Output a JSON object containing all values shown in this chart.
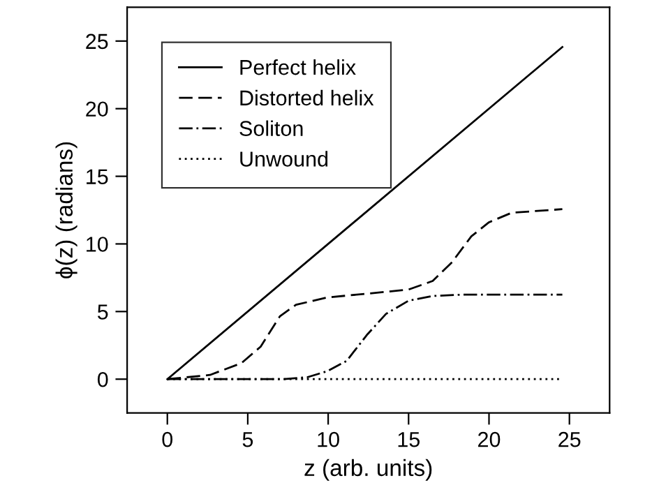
{
  "chart_data": {
    "type": "line",
    "xlabel": "z (arb. units)",
    "ylabel": "ϕ(z) (radians)",
    "xlim": [
      -2.5,
      27.5
    ],
    "ylim": [
      -2.5,
      27.5
    ],
    "xticks": [
      0,
      5,
      10,
      15,
      20,
      25
    ],
    "yticks": [
      0,
      5,
      10,
      15,
      20,
      25
    ],
    "grid": false,
    "legend": "top left",
    "marker": "none",
    "series": [
      {
        "name": "Perfect helix",
        "color": "#000000",
        "line_style": "solid",
        "x": [
          0,
          24.56
        ],
        "values": [
          0,
          24.56
        ]
      },
      {
        "name": "Distorted helix",
        "color": "#000000",
        "line_style": "dashed",
        "x": [
          0,
          2.65,
          4.6,
          5.8,
          7.0,
          8.0,
          9.94,
          12.4,
          15.0,
          16.5,
          17.7,
          18.9,
          20.0,
          21.4,
          24.56
        ],
        "values": [
          0,
          0.31,
          1.18,
          2.4,
          4.65,
          5.5,
          6.04,
          6.32,
          6.63,
          7.26,
          8.65,
          10.56,
          11.6,
          12.3,
          12.57
        ]
      },
      {
        "name": "Soliton",
        "color": "#000000",
        "line_style": "dashdot",
        "x": [
          0,
          7.26,
          8.7,
          9.94,
          11.15,
          12.4,
          13.6,
          15.0,
          16.5,
          18.4,
          24.56
        ],
        "values": [
          0,
          0,
          0.14,
          0.59,
          1.35,
          3.26,
          4.83,
          5.8,
          6.15,
          6.25,
          6.25
        ]
      },
      {
        "name": "Unwound",
        "color": "#000000",
        "line_style": "dotted",
        "x": [
          0,
          24.56
        ],
        "values": [
          0,
          0
        ]
      }
    ]
  }
}
